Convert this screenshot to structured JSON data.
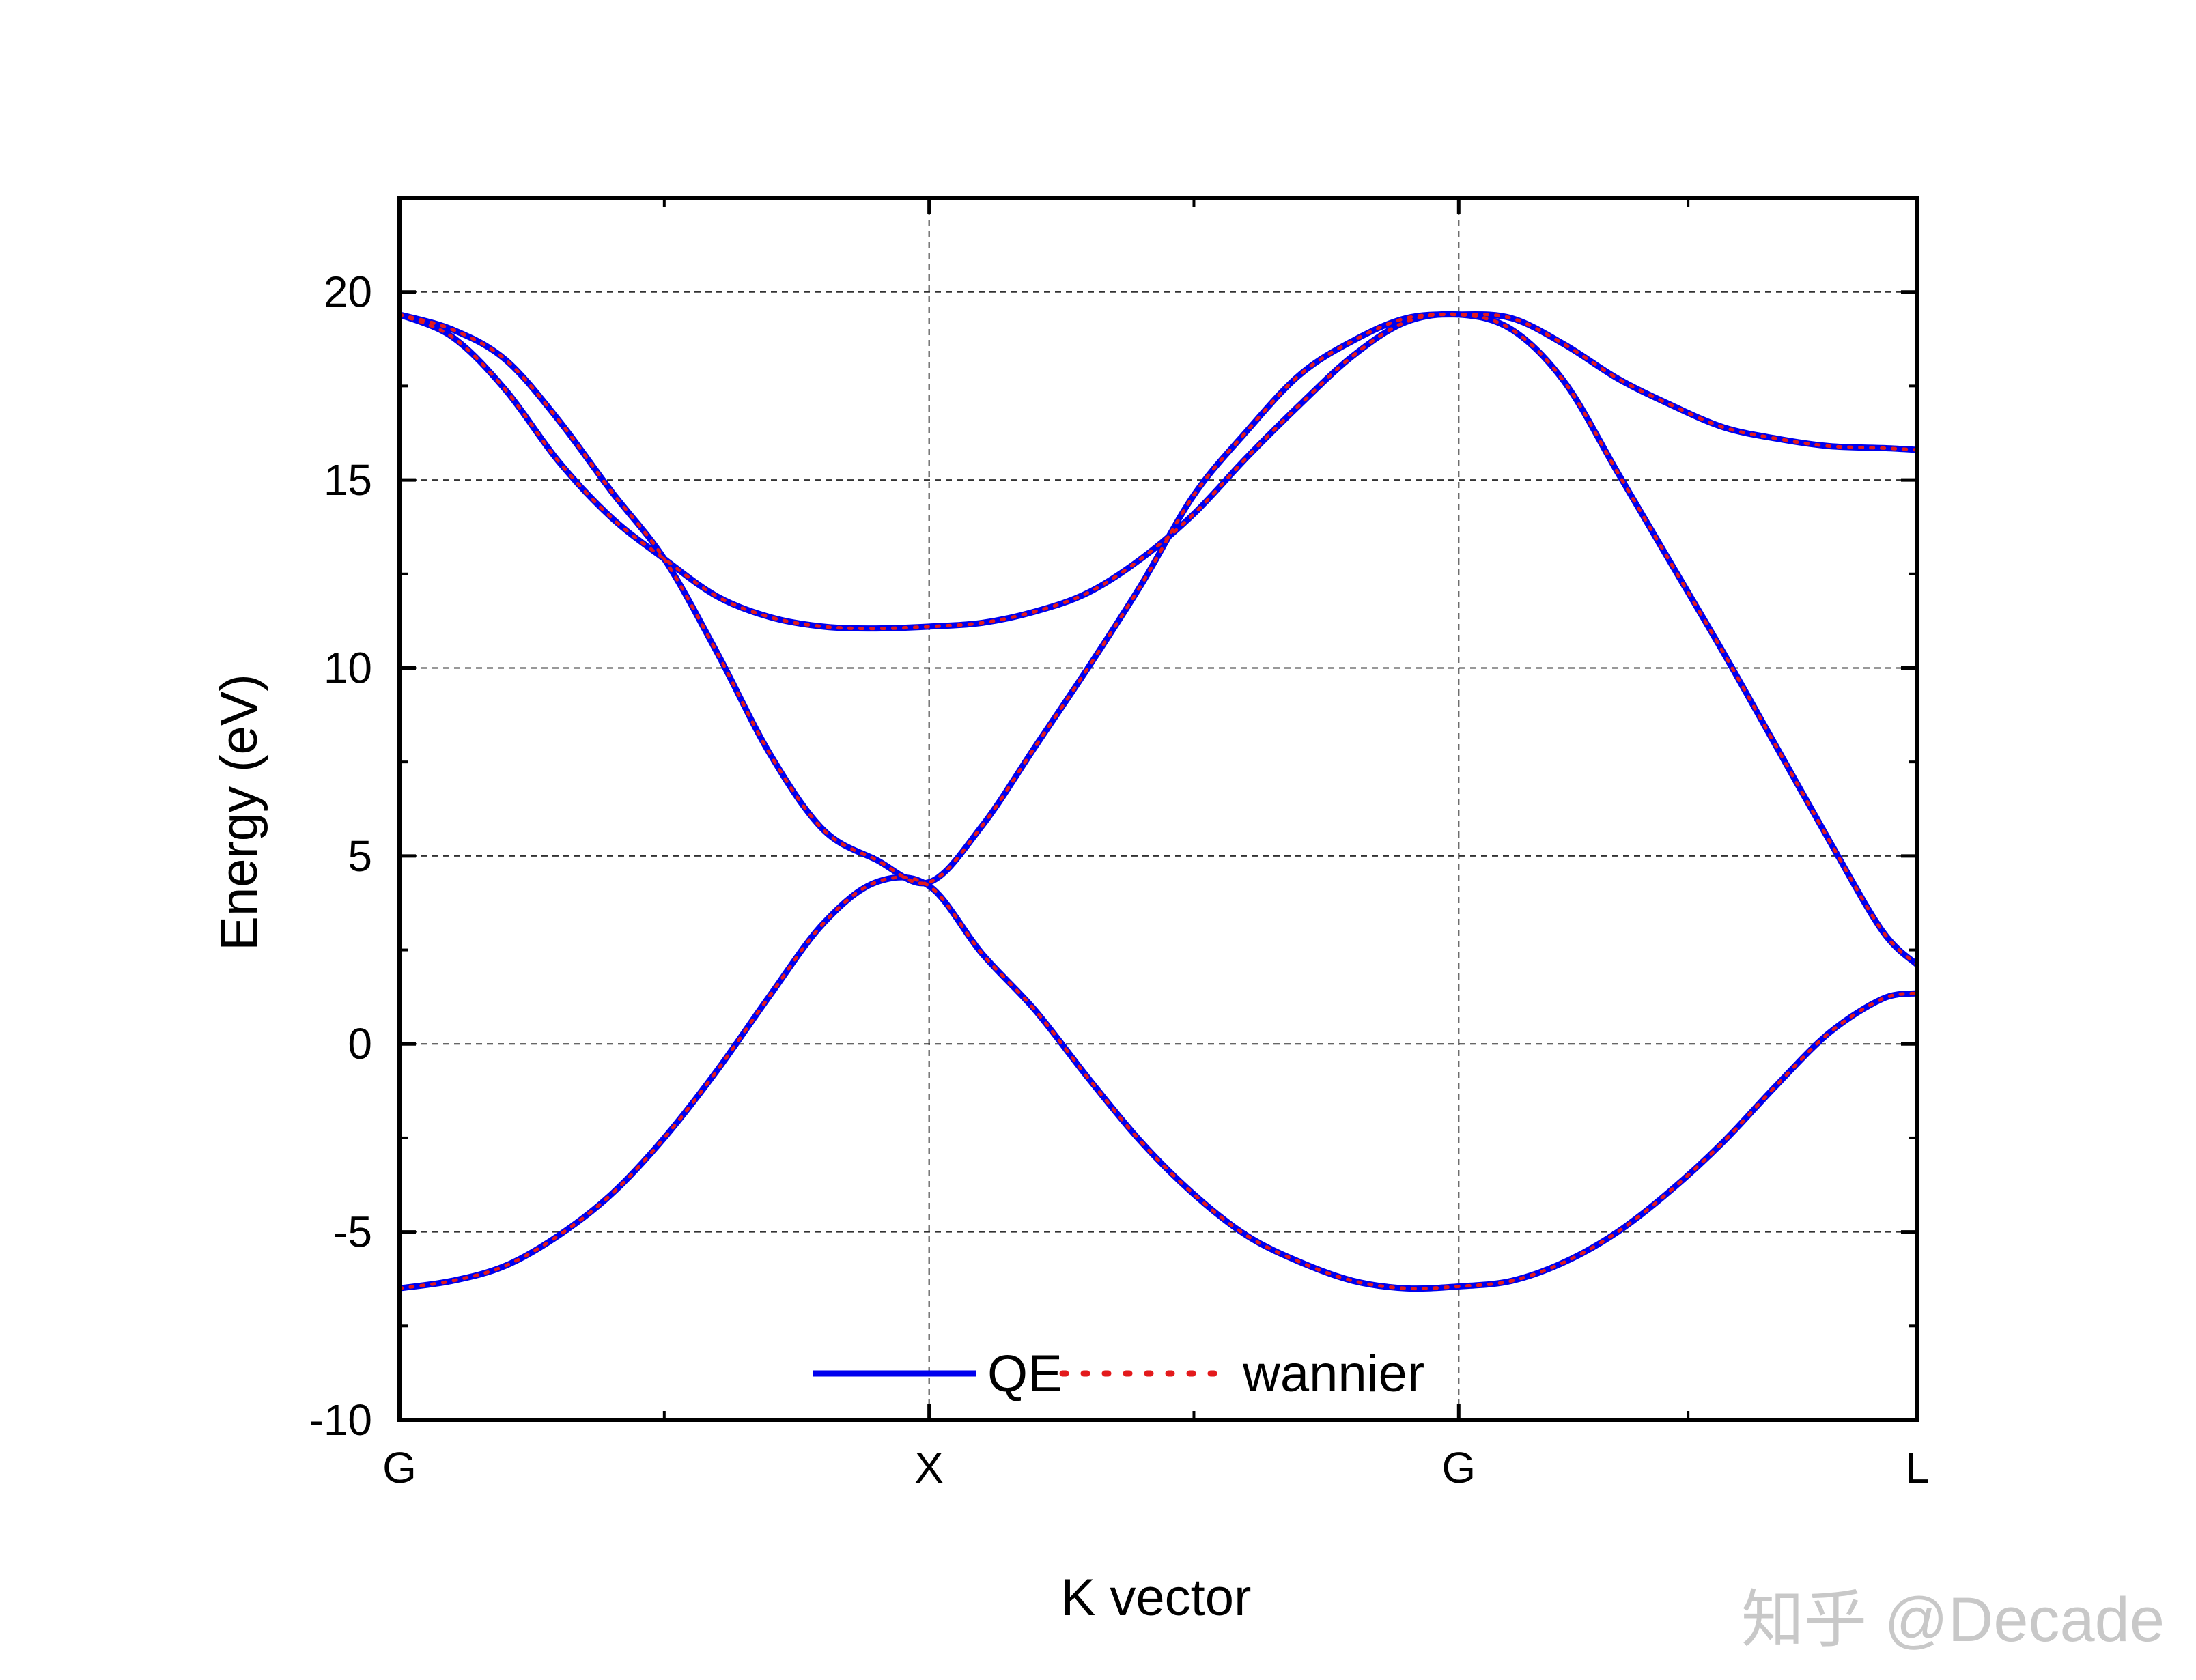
{
  "chart_data": {
    "type": "line",
    "title": "",
    "xlabel": "K vector",
    "ylabel": "Energy (eV)",
    "xlim": [
      0,
      2.866
    ],
    "ylim": [
      -10,
      22.5
    ],
    "grid": true,
    "legend_position": "bottom-center",
    "x_ticks": [
      {
        "value": 0,
        "label": "G"
      },
      {
        "value": 1.0,
        "label": "X"
      },
      {
        "value": 2.0,
        "label": "G"
      },
      {
        "value": 2.866,
        "label": "L"
      }
    ],
    "y_ticks": [
      -10,
      -5,
      0,
      5,
      10,
      15,
      20
    ],
    "y_tick_labels": [
      "-10",
      "-5",
      "0",
      "5",
      "10",
      "15",
      "20"
    ],
    "colors": {
      "QE": "#0000ee",
      "wannier": "#e31a1c"
    },
    "series": [
      {
        "name": "QE",
        "style": "solid",
        "bands": [
          {
            "x": [
              0,
              0.1,
              0.2,
              0.3,
              0.4,
              0.5,
              0.6,
              0.7,
              0.8,
              0.9,
              1.0,
              1.1,
              1.2,
              1.3,
              1.4,
              1.5,
              1.6,
              1.7,
              1.8,
              1.9,
              2.0,
              2.1,
              2.2,
              2.3,
              2.4,
              2.5,
              2.6,
              2.7,
              2.8,
              2.866
            ],
            "y": [
              -6.5,
              -6.3,
              -5.9,
              -5.1,
              -4.0,
              -2.5,
              -0.7,
              1.3,
              3.2,
              4.3,
              4.2,
              2.4,
              0.9,
              -0.9,
              -2.6,
              -4.0,
              -5.1,
              -5.8,
              -6.3,
              -6.5,
              -6.45,
              -6.3,
              -5.8,
              -5.0,
              -3.9,
              -2.6,
              -1.1,
              0.3,
              1.2,
              1.35
            ]
          },
          {
            "x": [
              0,
              0.1,
              0.2,
              0.3,
              0.4,
              0.5,
              0.6,
              0.7,
              0.8,
              0.9,
              1.0,
              1.1,
              1.2,
              1.3,
              1.4,
              1.5,
              1.6,
              1.7,
              1.8,
              1.9,
              2.0,
              2.1,
              2.2,
              2.3,
              2.4,
              2.5,
              2.6,
              2.7,
              2.8,
              2.866
            ],
            "y": [
              19.4,
              18.8,
              17.4,
              15.5,
              14.0,
              12.9,
              11.9,
              11.35,
              11.1,
              11.05,
              11.1,
              11.2,
              11.5,
              12.0,
              12.9,
              14.1,
              15.6,
              17.0,
              18.3,
              19.2,
              19.4,
              19.0,
              17.6,
              15.2,
              12.8,
              10.4,
              7.9,
              5.4,
              3.0,
              2.1
            ]
          },
          {
            "x": [
              0,
              0.1,
              0.2,
              0.3,
              0.4,
              0.5,
              0.6,
              0.7,
              0.8,
              0.9,
              1.0,
              1.1,
              1.2,
              1.3,
              1.4,
              1.5,
              1.6,
              1.7,
              1.8,
              1.9,
              2.0,
              2.1,
              2.2,
              2.3,
              2.4,
              2.5,
              2.6,
              2.7,
              2.8,
              2.866
            ],
            "y": [
              19.4,
              19.0,
              18.2,
              16.6,
              14.7,
              12.9,
              10.4,
              7.7,
              5.7,
              4.9,
              4.3,
              5.8,
              7.9,
              10.0,
              12.2,
              14.6,
              16.3,
              17.8,
              18.7,
              19.3,
              19.4,
              19.3,
              18.6,
              17.7,
              17.0,
              16.4,
              16.1,
              15.9,
              15.85,
              15.8
            ]
          }
        ]
      },
      {
        "name": "wannier",
        "style": "dotted",
        "bands": "same as QE"
      }
    ]
  },
  "watermark": "知乎 @Decade"
}
